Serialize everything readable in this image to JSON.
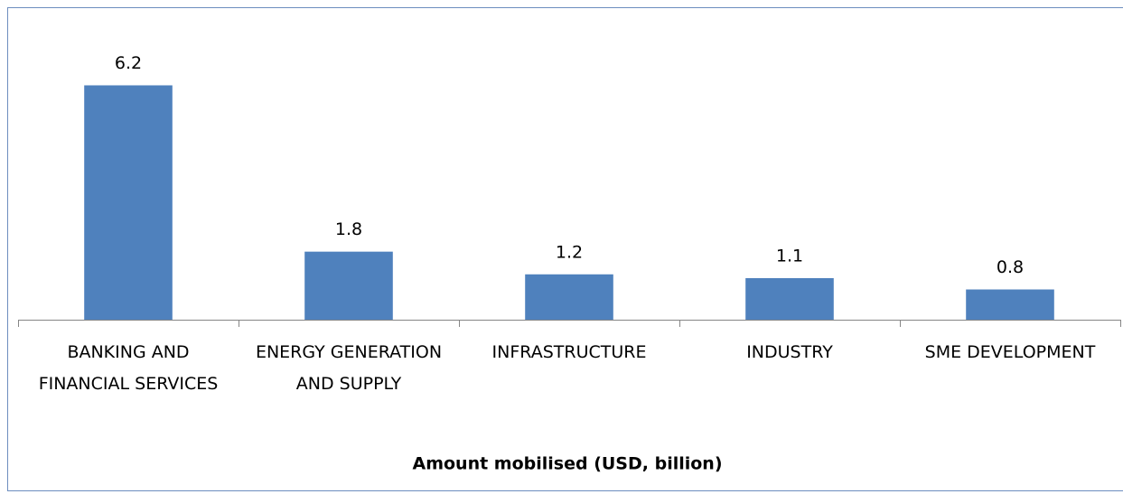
{
  "chart_data": {
    "type": "bar",
    "x_label": "Amount mobilised (USD, billion)",
    "categories": [
      "BANKING AND FINANCIAL SERVICES",
      "ENERGY GENERATION AND SUPPLY",
      "INFRASTRUCTURE",
      "INDUSTRY",
      "SME DEVELOPMENT"
    ],
    "values": [
      6.2,
      1.8,
      1.2,
      1.1,
      0.8
    ],
    "color": "#4f81bd",
    "ylim": [
      0,
      7
    ]
  }
}
